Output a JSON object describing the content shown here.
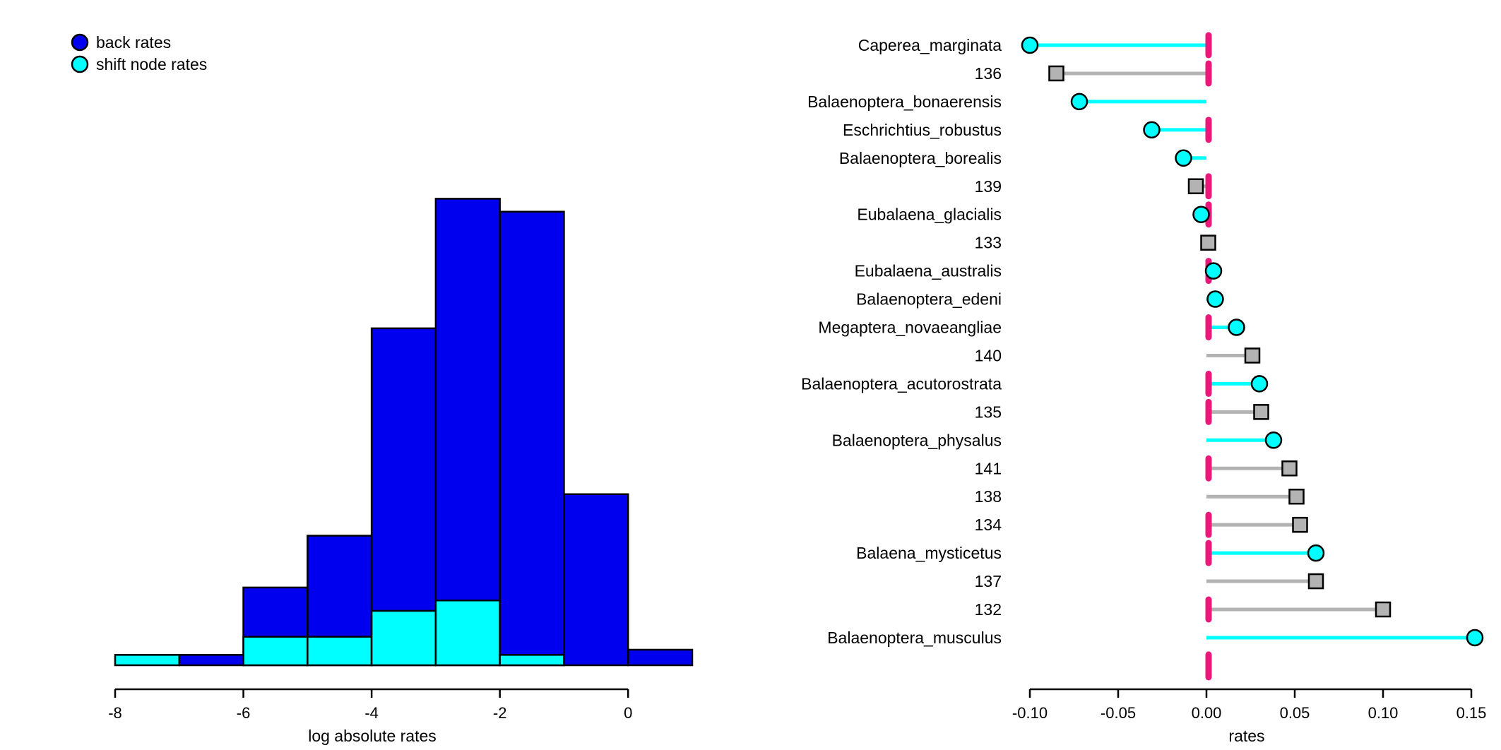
{
  "chart_data": [
    {
      "type": "bar",
      "subtype": "stacked-histogram",
      "xlabel": "log absolute rates",
      "xlim": [
        -8,
        1
      ],
      "x_ticks": [
        -8,
        -6,
        -4,
        -2,
        0
      ],
      "x_tick_labels": [
        "-8",
        "-6",
        "-4",
        "-2",
        "0"
      ],
      "bin_edges": [
        -8,
        -7,
        -6,
        -5,
        -4,
        -3,
        -2,
        -1,
        0,
        1
      ],
      "series": [
        {
          "name": "back rates",
          "color": "#0000ee",
          "values": [
            0,
            0.4,
            3,
            5,
            13,
            18,
            17.5,
            6.6,
            0.6
          ]
        },
        {
          "name": "shift node rates",
          "color": "#00ffff",
          "values": [
            0.4,
            0,
            1.1,
            1.1,
            2.1,
            2.5,
            0.4,
            0,
            0
          ]
        }
      ],
      "legend": {
        "position": "top-left",
        "entries": [
          {
            "label": "back rates",
            "color": "#0000ee"
          },
          {
            "label": "shift node rates",
            "color": "#00ffff"
          }
        ]
      },
      "grid": false
    },
    {
      "type": "lollipop",
      "xlabel": "rates",
      "xlim": [
        -0.1,
        0.15
      ],
      "x_ticks": [
        -0.1,
        -0.05,
        0.0,
        0.05,
        0.1,
        0.15
      ],
      "x_tick_labels": [
        "-0.10",
        "-0.05",
        "0.00",
        "0.05",
        "0.10",
        "0.15"
      ],
      "colors": {
        "tip": "#00ffff",
        "node": "#b3b3b3",
        "node_line": "#b3b3b3",
        "zero_marker": "#e8197a"
      },
      "grid": false,
      "items": [
        {
          "label": "Caperea_marginata",
          "value": -0.1,
          "kind": "tip",
          "zero_marker": true
        },
        {
          "label": "136",
          "value": -0.085,
          "kind": "node",
          "zero_marker": true
        },
        {
          "label": "Balaenoptera_bonaerensis",
          "value": -0.072,
          "kind": "tip",
          "zero_marker": false
        },
        {
          "label": "Eschrichtius_robustus",
          "value": -0.031,
          "kind": "tip",
          "zero_marker": true
        },
        {
          "label": "Balaenoptera_borealis",
          "value": -0.013,
          "kind": "tip",
          "zero_marker": false
        },
        {
          "label": "139",
          "value": -0.006,
          "kind": "node",
          "zero_marker": true
        },
        {
          "label": "Eubalaena_glacialis",
          "value": -0.003,
          "kind": "tip",
          "zero_marker": true
        },
        {
          "label": "133",
          "value": 0.001,
          "kind": "node",
          "zero_marker": false
        },
        {
          "label": "Eubalaena_australis",
          "value": 0.004,
          "kind": "tip",
          "zero_marker": true
        },
        {
          "label": "Balaenoptera_edeni",
          "value": 0.005,
          "kind": "tip",
          "zero_marker": false
        },
        {
          "label": "Megaptera_novaeangliae",
          "value": 0.017,
          "kind": "tip",
          "zero_marker": true
        },
        {
          "label": "140",
          "value": 0.026,
          "kind": "node",
          "zero_marker": false
        },
        {
          "label": "Balaenoptera_acutorostrata",
          "value": 0.03,
          "kind": "tip",
          "zero_marker": true
        },
        {
          "label": "135",
          "value": 0.031,
          "kind": "node",
          "zero_marker": true
        },
        {
          "label": "Balaenoptera_physalus",
          "value": 0.038,
          "kind": "tip",
          "zero_marker": false
        },
        {
          "label": "141",
          "value": 0.047,
          "kind": "node",
          "zero_marker": true
        },
        {
          "label": "138",
          "value": 0.051,
          "kind": "node",
          "zero_marker": false
        },
        {
          "label": "134",
          "value": 0.053,
          "kind": "node",
          "zero_marker": true
        },
        {
          "label": "Balaena_mysticetus",
          "value": 0.062,
          "kind": "tip",
          "zero_marker": true
        },
        {
          "label": "137",
          "value": 0.062,
          "kind": "node",
          "zero_marker": false
        },
        {
          "label": "132",
          "value": 0.1,
          "kind": "node",
          "zero_marker": true
        },
        {
          "label": "Balaenoptera_musculus",
          "value": 0.152,
          "kind": "tip",
          "zero_marker": false
        }
      ],
      "extra_zero_marker": true
    }
  ]
}
